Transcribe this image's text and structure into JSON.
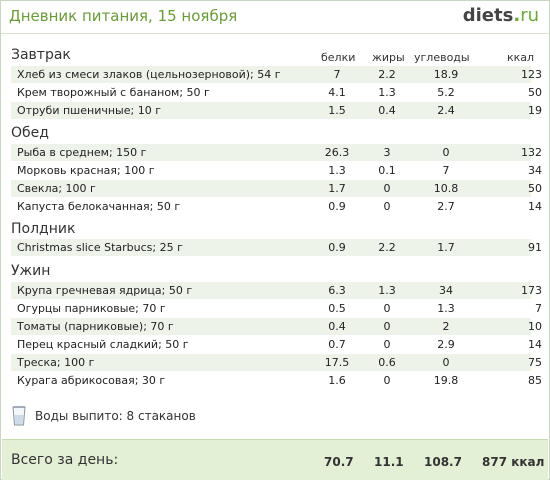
{
  "header": {
    "title": "Дневник питания, 15 ноября",
    "logo_main": "diets",
    "logo_dot": ".",
    "logo_tld": "ru"
  },
  "columns": {
    "protein": "белки",
    "fat": "жиры",
    "carbs": "углеводы",
    "kcal": "ккал"
  },
  "meals": [
    {
      "title": "Завтрак",
      "items": [
        {
          "name": "Хлеб из смеси злаков (цельнозерновой); 54 г",
          "protein": "7",
          "fat": "2.2",
          "carbs": "18.9",
          "kcal": "123"
        },
        {
          "name": "Крем творожный с бананом; 50 г",
          "protein": "4.1",
          "fat": "1.3",
          "carbs": "5.2",
          "kcal": "50"
        },
        {
          "name": "Отруби пшеничные; 10 г",
          "protein": "1.5",
          "fat": "0.4",
          "carbs": "2.4",
          "kcal": "19"
        }
      ]
    },
    {
      "title": "Обед",
      "items": [
        {
          "name": "Рыба в среднем; 150 г",
          "protein": "26.3",
          "fat": "3",
          "carbs": "0",
          "kcal": "132"
        },
        {
          "name": "Морковь красная; 100 г",
          "protein": "1.3",
          "fat": "0.1",
          "carbs": "7",
          "kcal": "34"
        },
        {
          "name": "Свекла; 100 г",
          "protein": "1.7",
          "fat": "0",
          "carbs": "10.8",
          "kcal": "50"
        },
        {
          "name": "Капуста белокачанная; 50 г",
          "protein": "0.9",
          "fat": "0",
          "carbs": "2.7",
          "kcal": "14"
        }
      ]
    },
    {
      "title": "Полдник",
      "items": [
        {
          "name": "Christmas slice Starbucs; 25 г",
          "protein": "0.9",
          "fat": "2.2",
          "carbs": "1.7",
          "kcal": "91"
        }
      ]
    },
    {
      "title": "Ужин",
      "items": [
        {
          "name": "Крупа гречневая ядрица; 50 г",
          "protein": "6.3",
          "fat": "1.3",
          "carbs": "34",
          "kcal": "173"
        },
        {
          "name": "Огурцы парниковые; 70 г",
          "protein": "0.5",
          "fat": "0",
          "carbs": "1.3",
          "kcal": "7"
        },
        {
          "name": "Томаты (парниковые); 70 г",
          "protein": "0.4",
          "fat": "0",
          "carbs": "2",
          "kcal": "10"
        },
        {
          "name": "Перец красный сладкий; 50 г",
          "protein": "0.7",
          "fat": "0",
          "carbs": "2.9",
          "kcal": "14"
        },
        {
          "name": "Треска; 100 г",
          "protein": "17.5",
          "fat": "0.6",
          "carbs": "0",
          "kcal": "75"
        },
        {
          "name": "Курага абрикосовая; 30 г",
          "protein": "1.6",
          "fat": "0",
          "carbs": "19.8",
          "kcal": "85"
        }
      ]
    }
  ],
  "water": {
    "text": "Воды выпито: 8 стаканов",
    "icon": "glass-icon"
  },
  "total": {
    "label": "Всего за день:",
    "protein": "70.7",
    "fat": "11.1",
    "carbs": "108.7",
    "kcal": "877 ккал"
  }
}
